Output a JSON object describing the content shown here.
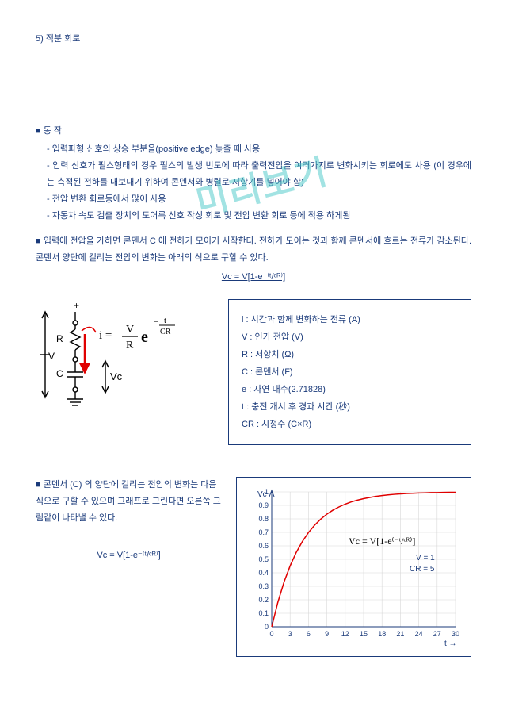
{
  "watermark": "미리보기",
  "header": {
    "title": "5) 적분 회로"
  },
  "operation": {
    "heading": "■ 동 작",
    "points": [
      "- 입력파형 신호의 상승 부분을(positive edge) 늦출 때 사용",
      "- 입력 신호가 펄스형태의 경우 펄스의 발생 빈도에 따라 출력전압을 여러가지로 변화시키는 회로에도 사용 (이 경우에는 측적된 전하를 내보내기 위하여 콘덴서와 병렬로 저항기를 넣어야 함)",
      "- 전압 변환 회로등에서 많이 사용",
      "- 자동차 속도 검출 장치의 도어록 신호 작성 회로 및 전압 변환 회로 등에 적용 하게됨"
    ]
  },
  "paragraph2": {
    "heading": "■ 입력에 전압을 가하면 콘덴서 C 에 전하가 모이기 시작한다. 전하가 모이는 것과 함께 콘덴서에 흐르는 전류가 감소된다. 콘덴서 양단에 걸리는 전압의 변화는 아래의 식으로 구할 수 있다.",
    "formula": "Vc = V[1-e⁻⁽ᵗ/ᶜᴿ⁾]"
  },
  "circuit": {
    "eq_prefix": "i =",
    "eq_frac_top": "V",
    "eq_frac_bot": "R",
    "eq_exp_base": "e",
    "eq_exp_top": "t",
    "eq_exp_bot": "CR",
    "label_R": "R",
    "label_C": "C",
    "label_V": "V",
    "label_Vc": "Vc",
    "label_plus": "+"
  },
  "definitions": {
    "i": "i  :  시간과 함께 변화하는 전류 (A)",
    "V": "V :  인가 전압  (V)",
    "R": "R :  저항치  (Ω)",
    "C": "C :  콘덴서  (F)",
    "e": "e :  자연 대수(2.71828)",
    "t": "t  :  충전 개시 후 경과 시간 (秒)",
    "CR": "CR  :  시정수  (C×R)"
  },
  "paragraph3": {
    "text": "■ 콘덴서 (C) 의 양단에 걸리는 전압의 변화는 다음 식으로 구할 수 있으며 그래프로 그린다면 오른쪽 그림같이 나타낼 수 있다.",
    "formula": "Vc = V[1-e⁻⁽ᵗ/ᶜᴿ⁾]"
  },
  "chart": {
    "type": "line",
    "x_values": [
      0,
      1,
      2,
      3,
      4,
      5,
      6,
      7,
      8,
      9,
      10,
      11,
      12,
      13,
      14,
      15,
      16,
      17,
      18,
      19,
      20,
      21,
      22,
      23,
      24,
      25,
      26,
      27,
      28,
      29,
      30
    ],
    "y_values": [
      0,
      0.181,
      0.33,
      0.451,
      0.551,
      0.632,
      0.699,
      0.753,
      0.798,
      0.835,
      0.865,
      0.889,
      0.909,
      0.926,
      0.939,
      0.95,
      0.959,
      0.967,
      0.973,
      0.978,
      0.982,
      0.985,
      0.988,
      0.99,
      0.992,
      0.993,
      0.995,
      0.995,
      0.996,
      0.997,
      0.997
    ],
    "xlim": [
      0,
      30
    ],
    "ylim": [
      0,
      1
    ],
    "xticks": [
      0,
      3,
      6,
      9,
      12,
      15,
      18,
      21,
      24,
      27,
      30
    ],
    "yticks": [
      0,
      0.1,
      0.2,
      0.3,
      0.4,
      0.5,
      0.6,
      0.7,
      0.8,
      0.9,
      1
    ],
    "line_color": "#e00000",
    "grid_color": "#d8d8d8",
    "axis_color": "#1a3a7a",
    "y_axis_label": "Vc",
    "x_axis_label": "t →",
    "annotation_formula": "Vc = V[1-e⁽⁻ᵗ/ᶜᴿ⁾]",
    "annotation_v": "V = 1",
    "annotation_cr": "CR = 5",
    "line_width": 1.5
  }
}
